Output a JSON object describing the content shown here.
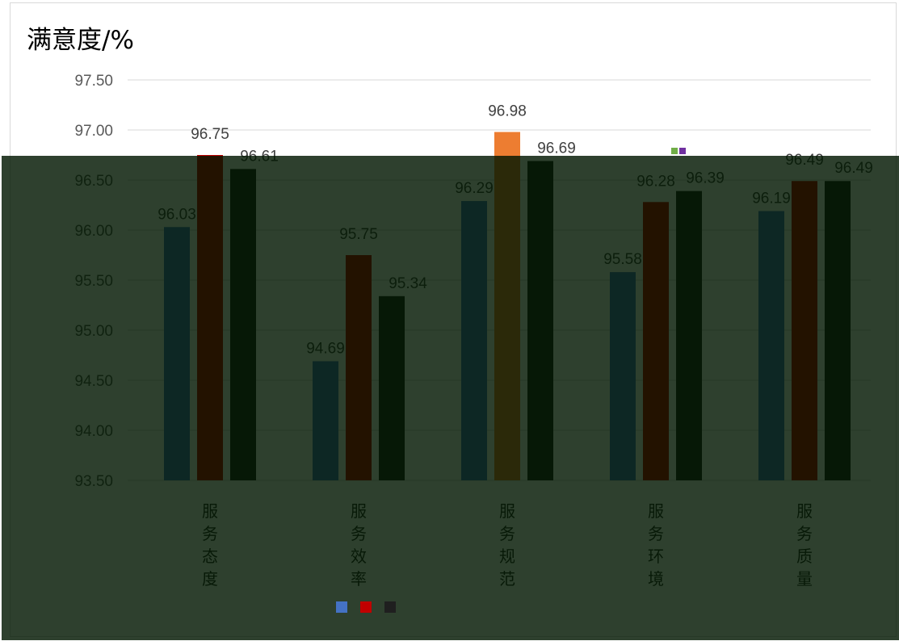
{
  "chart_data": {
    "type": "bar",
    "ylabel": "满意度/%",
    "ylim": [
      93.5,
      97.5
    ],
    "yticks": [
      "93.50",
      "94.00",
      "94.50",
      "95.00",
      "95.50",
      "96.00",
      "96.50",
      "97.00",
      "97.50"
    ],
    "grid": true,
    "categories": [
      "服务态度",
      "服务效率",
      "服务规范",
      "服务环境",
      "服务质量"
    ],
    "series": [
      {
        "values": [
          96.03,
          94.69,
          96.29,
          95.58,
          96.19
        ],
        "color": "#4472c4"
      },
      {
        "values": [
          96.75,
          95.75,
          96.98,
          96.28,
          96.49
        ],
        "color": "#c00000"
      },
      {
        "values": [
          96.61,
          95.34,
          96.69,
          96.39,
          96.49
        ],
        "color": "#1f1f1f"
      }
    ],
    "highlight_bar": {
      "category_index": 2,
      "series_index": 1,
      "color": "#ed7d31"
    },
    "legend": {
      "position": "bottom",
      "entries": [
        "",
        "",
        ""
      ]
    },
    "extra_marker_colors": [
      "#70ad47",
      "#7030a0"
    ]
  },
  "overlay": {
    "color": "#012a01"
  }
}
